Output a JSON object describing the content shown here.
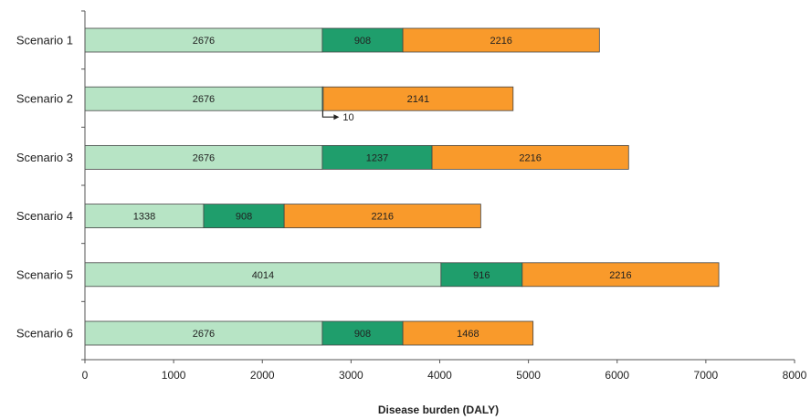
{
  "chart_data": {
    "type": "bar",
    "orientation": "horizontal",
    "stacked": true,
    "categories": [
      "Scenario 1",
      "Scenario 2",
      "Scenario 3",
      "Scenario 4",
      "Scenario 5",
      "Scenario 6"
    ],
    "series": [
      {
        "color": "#b7e4c5",
        "values": [
          2676,
          2676,
          2676,
          1338,
          4014,
          2676
        ]
      },
      {
        "color": "#1f9e6c",
        "values": [
          908,
          10,
          1237,
          908,
          916,
          908
        ]
      },
      {
        "color": "#f99a2b",
        "values": [
          2216,
          2141,
          2216,
          2216,
          2216,
          1468
        ]
      }
    ],
    "segment_labels": [
      [
        "2676",
        "908",
        "2216"
      ],
      [
        "2676",
        "",
        "2141"
      ],
      [
        "2676",
        "1237",
        "2216"
      ],
      [
        "1338",
        "908",
        "2216"
      ],
      [
        "4014",
        "916",
        "2216"
      ],
      [
        "2676",
        "908",
        "1468"
      ]
    ],
    "annotations": [
      {
        "category": "Scenario 2",
        "series_index": 1,
        "text": "10"
      }
    ],
    "xlabel": "Disease burden (DALY)",
    "ylabel": "",
    "title": "",
    "xlim": [
      0,
      8000
    ],
    "xticks": [
      0,
      1000,
      2000,
      3000,
      4000,
      5000,
      6000,
      7000,
      8000
    ],
    "grid": false,
    "legend": "none"
  }
}
